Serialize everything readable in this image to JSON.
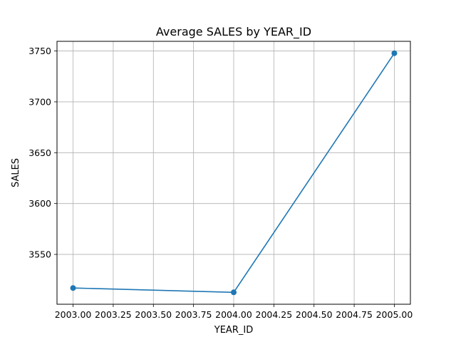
{
  "chart_data": {
    "type": "line",
    "title": "Average SALES by YEAR_ID",
    "xlabel": "YEAR_ID",
    "ylabel": "SALES",
    "x": [
      2003,
      2004,
      2005
    ],
    "series": [
      {
        "values": [
          3516.98,
          3512.72,
          3747.78
        ]
      }
    ],
    "xlim": [
      2002.9,
      2005.1
    ],
    "ylim": [
      3501.0,
      3759.5
    ],
    "xticks": [
      2003.0,
      2003.25,
      2003.5,
      2003.75,
      2004.0,
      2004.25,
      2004.5,
      2004.75,
      2005.0
    ],
    "xtick_labels": [
      "2003.00",
      "2003.25",
      "2003.50",
      "2003.75",
      "2004.00",
      "2004.25",
      "2004.50",
      "2004.75",
      "2005.00"
    ],
    "yticks": [
      3550,
      3600,
      3650,
      3700,
      3750
    ],
    "ytick_labels": [
      "3550",
      "3600",
      "3650",
      "3700",
      "3750"
    ],
    "grid": true,
    "line_color": "#1f77b4",
    "marker": "circle"
  }
}
